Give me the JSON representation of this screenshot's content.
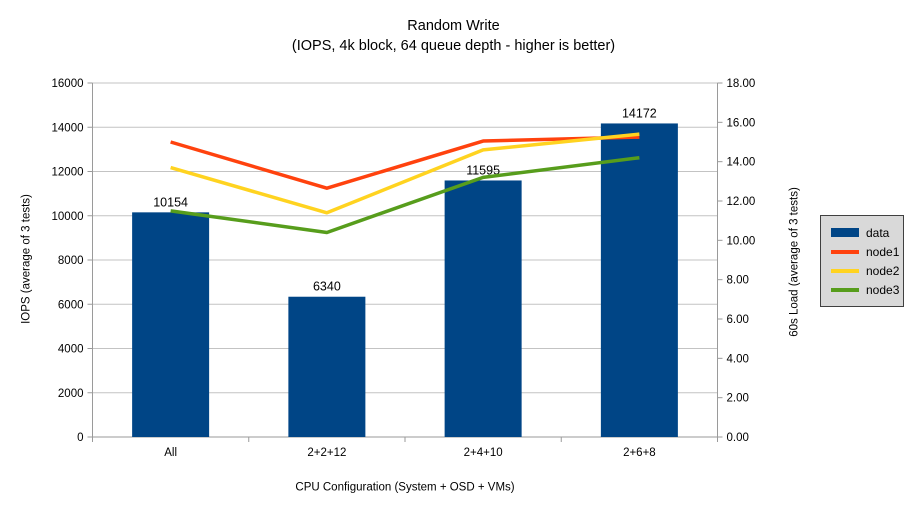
{
  "title": "Random Write",
  "subtitle": "(IOPS, 4k block, 64 queue depth - higher is better)",
  "colors": {
    "bar": "#004586",
    "node1": "#FF420E",
    "node2": "#FFD320",
    "node3": "#579D1C",
    "grid": "#C3C3C3",
    "axis": "#9A9A9A",
    "legend_bg": "#D9D9D9",
    "legend_border": "#404040",
    "text": "#000000"
  },
  "legend": {
    "position": "right",
    "items": [
      {
        "label": "data",
        "type": "bar",
        "color_key": "bar"
      },
      {
        "label": "node1",
        "type": "line",
        "color_key": "node1"
      },
      {
        "label": "node2",
        "type": "line",
        "color_key": "node2"
      },
      {
        "label": "node3",
        "type": "line",
        "color_key": "node3"
      }
    ]
  },
  "chart_data": {
    "type": "bar",
    "subtype": "combo-bar-line",
    "title": "Random Write",
    "subtitle": "(IOPS, 4k block, 64 queue depth - higher is better)",
    "categories": [
      "All",
      "2+2+12",
      "2+4+10",
      "2+6+8"
    ],
    "bar_series": {
      "name": "data",
      "axis": "left",
      "values": [
        10154,
        6340,
        11595,
        14172
      ],
      "labels": [
        "10154",
        "6340",
        "11595",
        "14172"
      ]
    },
    "line_series": [
      {
        "name": "node1",
        "axis": "right",
        "values": [
          15.0,
          12.65,
          15.05,
          15.25
        ]
      },
      {
        "name": "node2",
        "axis": "right",
        "values": [
          13.7,
          11.4,
          14.6,
          15.4
        ]
      },
      {
        "name": "node3",
        "axis": "right",
        "values": [
          11.5,
          10.4,
          13.2,
          14.2
        ]
      }
    ],
    "left_axis": {
      "title": "IOPS (average of 3 tests)",
      "min": 0,
      "max": 16000,
      "step": 2000
    },
    "right_axis": {
      "title": "60s Load (average of 3 tests)",
      "min": 0,
      "max": 18,
      "step": 2,
      "decimals": 2
    },
    "x_axis": {
      "title": "CPU Configuration (System + OSD + VMs)"
    },
    "grid": "horizontal-only",
    "legend_position": "right"
  }
}
